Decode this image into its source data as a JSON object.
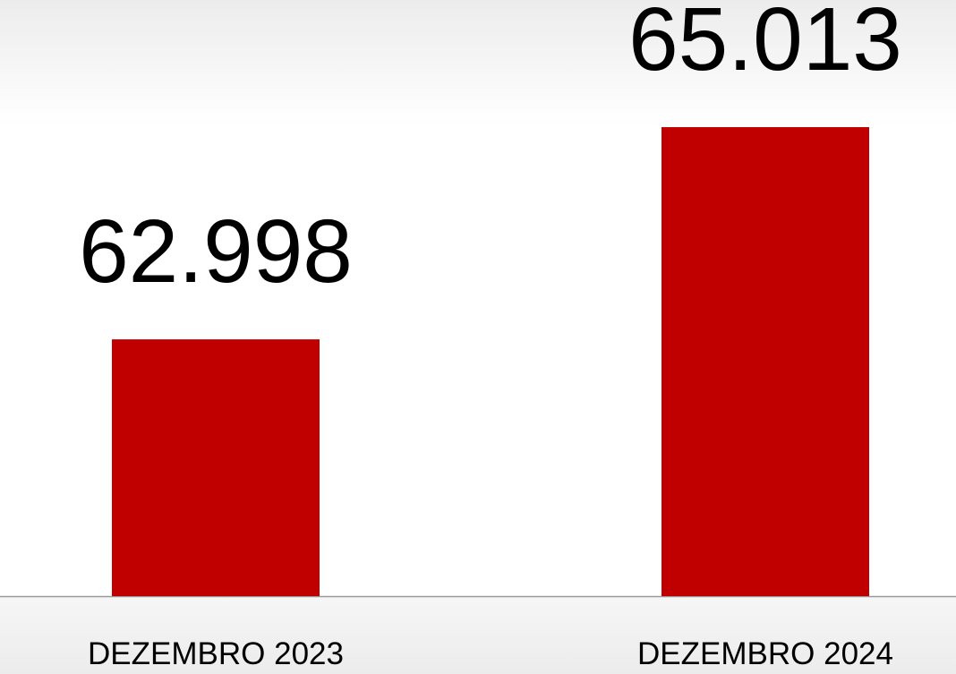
{
  "chart_data": {
    "type": "bar",
    "categories": [
      "DEZEMBRO 2023",
      "DEZEMBRO 2024"
    ],
    "values": [
      62998,
      65013
    ],
    "value_labels": [
      "62.998",
      "65.013"
    ],
    "color": "#c00000",
    "ylim": [
      60560,
      66220
    ]
  }
}
